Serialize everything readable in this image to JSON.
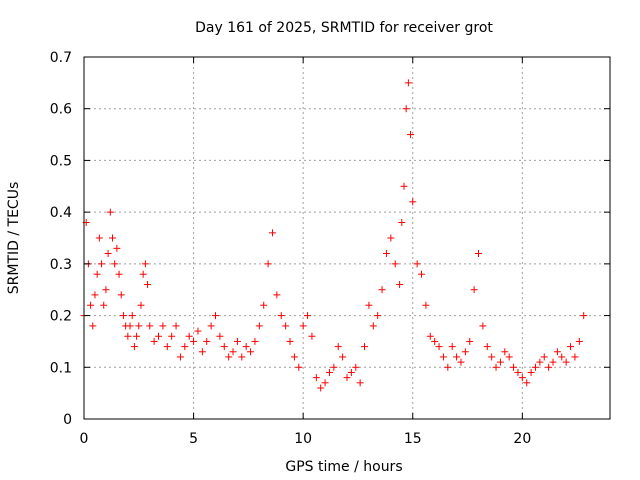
{
  "chart_data": {
    "type": "scatter",
    "title": "Day 161 of 2025, SRMTID for receiver grot",
    "xlabel": "GPS time / hours",
    "ylabel": "SRMTID / TECUs",
    "xlim": [
      0,
      24
    ],
    "ylim": [
      0,
      0.7
    ],
    "xticks": [
      "0",
      "5",
      "10",
      "15",
      "20"
    ],
    "yticks": [
      "0",
      "0.1",
      "0.2",
      "0.3",
      "0.4",
      "0.5",
      "0.6",
      "0.7"
    ],
    "grid": true,
    "marker": "+",
    "colors": {
      "series": "#ff0000",
      "grid": "#a0a0a0",
      "axis": "#000000"
    },
    "series": [
      {
        "name": "SRMTID",
        "x": [
          0.0,
          0.1,
          0.2,
          0.3,
          0.4,
          0.5,
          0.6,
          0.7,
          0.8,
          0.9,
          1.0,
          1.1,
          1.2,
          1.3,
          1.4,
          1.5,
          1.6,
          1.7,
          1.8,
          1.9,
          2.0,
          2.1,
          2.2,
          2.3,
          2.4,
          2.5,
          2.6,
          2.7,
          2.8,
          2.9,
          3.0,
          3.2,
          3.4,
          3.6,
          3.8,
          4.0,
          4.2,
          4.4,
          4.6,
          4.8,
          5.0,
          5.2,
          5.4,
          5.6,
          5.8,
          6.0,
          6.2,
          6.4,
          6.6,
          6.8,
          7.0,
          7.2,
          7.4,
          7.6,
          7.8,
          8.0,
          8.2,
          8.4,
          8.6,
          8.8,
          9.0,
          9.2,
          9.4,
          9.6,
          9.8,
          10.0,
          10.2,
          10.4,
          10.6,
          10.8,
          11.0,
          11.2,
          11.4,
          11.6,
          11.8,
          12.0,
          12.2,
          12.4,
          12.6,
          12.8,
          13.0,
          13.2,
          13.4,
          13.6,
          13.8,
          14.0,
          14.2,
          14.4,
          14.5,
          14.6,
          14.7,
          14.8,
          14.9,
          15.0,
          15.2,
          15.4,
          15.6,
          15.8,
          16.0,
          16.2,
          16.4,
          16.6,
          16.8,
          17.0,
          17.2,
          17.4,
          17.6,
          17.8,
          18.0,
          18.2,
          18.4,
          18.6,
          18.8,
          19.0,
          19.2,
          19.4,
          19.6,
          19.8,
          20.0,
          20.2,
          20.4,
          20.6,
          20.8,
          21.0,
          21.2,
          21.4,
          21.6,
          21.8,
          22.0,
          22.2,
          22.4,
          22.6,
          22.8
        ],
        "y": [
          0.2,
          0.38,
          0.3,
          0.22,
          0.18,
          0.24,
          0.28,
          0.35,
          0.3,
          0.22,
          0.25,
          0.32,
          0.4,
          0.35,
          0.3,
          0.33,
          0.28,
          0.24,
          0.2,
          0.18,
          0.16,
          0.18,
          0.2,
          0.14,
          0.16,
          0.18,
          0.22,
          0.28,
          0.3,
          0.26,
          0.18,
          0.15,
          0.16,
          0.18,
          0.14,
          0.16,
          0.18,
          0.12,
          0.14,
          0.16,
          0.15,
          0.17,
          0.13,
          0.15,
          0.18,
          0.2,
          0.16,
          0.14,
          0.12,
          0.13,
          0.15,
          0.12,
          0.14,
          0.13,
          0.15,
          0.18,
          0.22,
          0.3,
          0.36,
          0.24,
          0.2,
          0.18,
          0.15,
          0.12,
          0.1,
          0.18,
          0.2,
          0.16,
          0.08,
          0.06,
          0.07,
          0.09,
          0.1,
          0.14,
          0.12,
          0.08,
          0.09,
          0.1,
          0.07,
          0.14,
          0.22,
          0.18,
          0.2,
          0.25,
          0.32,
          0.35,
          0.3,
          0.26,
          0.38,
          0.45,
          0.6,
          0.65,
          0.55,
          0.42,
          0.3,
          0.28,
          0.22,
          0.16,
          0.15,
          0.14,
          0.12,
          0.1,
          0.14,
          0.12,
          0.11,
          0.13,
          0.15,
          0.25,
          0.32,
          0.18,
          0.14,
          0.12,
          0.1,
          0.11,
          0.13,
          0.12,
          0.1,
          0.09,
          0.08,
          0.07,
          0.09,
          0.1,
          0.11,
          0.12,
          0.1,
          0.11,
          0.13,
          0.12,
          0.11,
          0.14,
          0.12,
          0.15,
          0.2
        ]
      }
    ]
  }
}
